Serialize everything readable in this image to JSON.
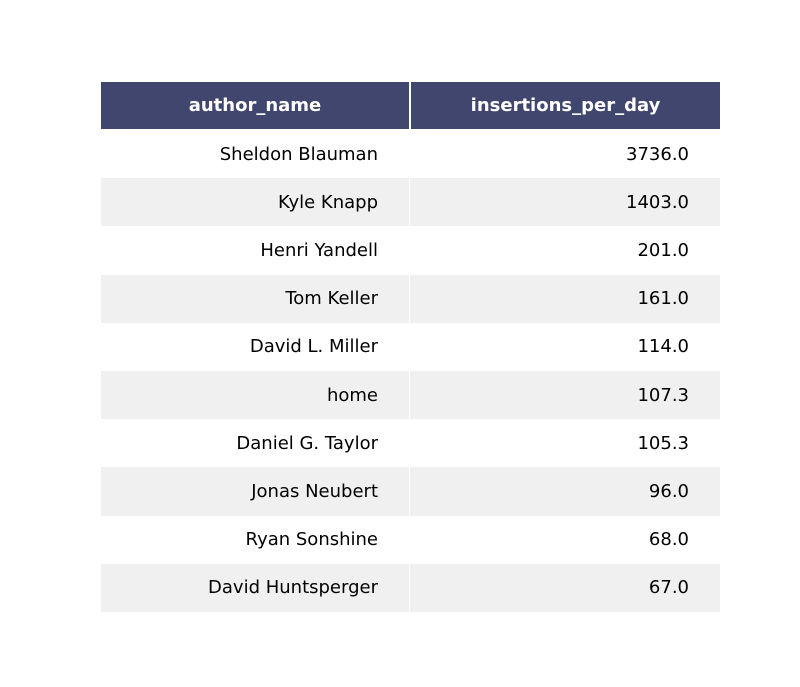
{
  "chart_data": {
    "type": "table",
    "columns": [
      "author_name",
      "insertions_per_day"
    ],
    "rows": [
      [
        "Sheldon Blauman",
        "3736.0"
      ],
      [
        "Kyle Knapp",
        "1403.0"
      ],
      [
        "Henri Yandell",
        "201.0"
      ],
      [
        "Tom Keller",
        "161.0"
      ],
      [
        "David L. Miller",
        "114.0"
      ],
      [
        "home",
        "107.3"
      ],
      [
        "Daniel G. Taylor",
        "105.3"
      ],
      [
        "Jonas Neubert",
        "96.0"
      ],
      [
        "Ryan Sonshine",
        "68.0"
      ],
      [
        "David Huntsperger",
        "67.0"
      ]
    ],
    "header_color": "#40466e",
    "header_text_color": "#ffffff",
    "row_colors": [
      "#ffffff",
      "#f0f0f0"
    ]
  }
}
